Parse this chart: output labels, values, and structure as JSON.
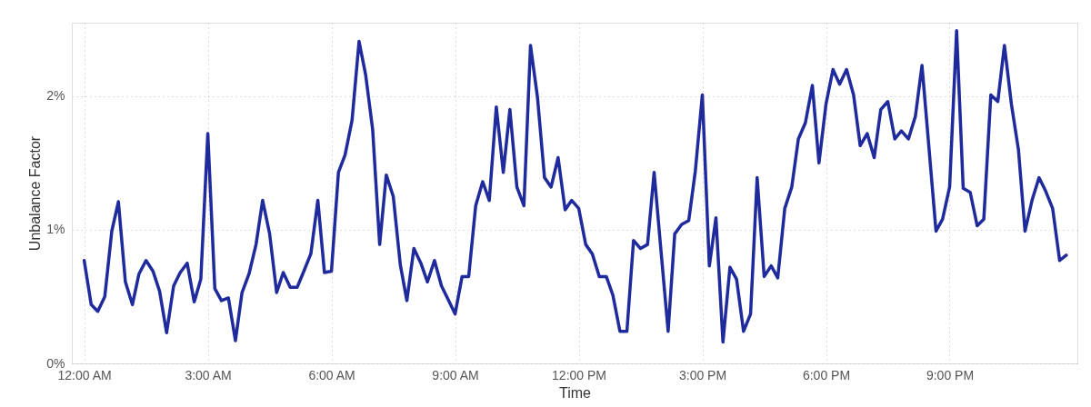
{
  "chart_data": {
    "type": "line",
    "xlabel": "Time",
    "ylabel": "Unbalance Factor",
    "x": [
      0,
      0.17,
      0.33,
      0.5,
      0.67,
      0.83,
      1,
      1.17,
      1.33,
      1.5,
      1.67,
      1.83,
      2,
      2.17,
      2.33,
      2.5,
      2.67,
      2.83,
      3,
      3.17,
      3.33,
      3.5,
      3.67,
      3.83,
      4,
      4.17,
      4.33,
      4.5,
      4.67,
      4.83,
      5,
      5.17,
      5.33,
      5.5,
      5.67,
      5.83,
      6,
      6.17,
      6.33,
      6.5,
      6.67,
      6.83,
      7,
      7.17,
      7.33,
      7.5,
      7.67,
      7.83,
      8,
      8.17,
      8.33,
      8.5,
      8.67,
      8.83,
      9,
      9.17,
      9.33,
      9.5,
      9.67,
      9.83,
      10,
      10.17,
      10.33,
      10.5,
      10.67,
      10.83,
      11,
      11.17,
      11.33,
      11.5,
      11.67,
      11.83,
      12,
      12.17,
      12.33,
      12.5,
      12.67,
      12.83,
      13,
      13.17,
      13.33,
      13.5,
      13.67,
      13.83,
      14,
      14.17,
      14.33,
      14.5,
      14.67,
      14.83,
      15,
      15.17,
      15.33,
      15.5,
      15.67,
      15.83,
      16,
      16.17,
      16.33,
      16.5,
      16.67,
      16.83,
      17,
      17.17,
      17.33,
      17.5,
      17.67,
      17.83,
      18,
      18.17,
      18.33,
      18.5,
      18.67,
      18.83,
      19,
      19.17,
      19.33,
      19.5,
      19.67,
      19.83,
      20,
      20.17,
      20.33,
      20.5,
      20.67,
      20.83,
      21,
      21.17,
      21.33,
      21.5,
      21.67,
      21.83,
      22,
      22.17,
      22.33,
      22.5,
      22.67,
      22.83,
      23,
      23.17,
      23.33,
      23.5,
      23.67,
      23.83
    ],
    "series": [
      {
        "color": "#1f2a9c",
        "values": [
          0.77,
          0.44,
          0.39,
          0.5,
          0.99,
          1.21,
          0.61,
          0.44,
          0.67,
          0.77,
          0.69,
          0.54,
          0.23,
          0.58,
          0.68,
          0.75,
          0.46,
          0.63,
          1.72,
          0.56,
          0.47,
          0.49,
          0.17,
          0.53,
          0.67,
          0.89,
          1.22,
          0.97,
          0.53,
          0.68,
          0.57,
          0.57,
          0.69,
          0.82,
          1.22,
          0.68,
          0.69,
          1.43,
          1.56,
          1.82,
          2.41,
          2.16,
          1.75,
          0.89,
          1.41,
          1.25,
          0.74,
          0.47,
          0.86,
          0.75,
          0.61,
          0.77,
          0.58,
          0.48,
          0.37,
          0.65,
          0.65,
          1.18,
          1.36,
          1.22,
          1.92,
          1.43,
          1.9,
          1.32,
          1.18,
          2.38,
          1.99,
          1.39,
          1.32,
          1.54,
          1.15,
          1.22,
          1.16,
          0.89,
          0.82,
          0.65,
          0.65,
          0.51,
          0.24,
          0.24,
          0.92,
          0.86,
          0.89,
          1.43,
          0.83,
          0.24,
          0.97,
          1.04,
          1.07,
          1.44,
          2.01,
          0.73,
          1.09,
          0.16,
          0.72,
          0.63,
          0.24,
          0.37,
          1.39,
          0.65,
          0.73,
          0.64,
          1.16,
          1.32,
          1.68,
          1.8,
          2.08,
          1.5,
          1.94,
          2.2,
          2.09,
          2.2,
          2.01,
          1.63,
          1.72,
          1.54,
          1.9,
          1.96,
          1.68,
          1.74,
          1.68,
          1.85,
          2.23,
          1.61,
          0.99,
          1.08,
          1.32,
          2.49,
          1.31,
          1.28,
          1.03,
          1.08,
          2.01,
          1.96,
          2.38,
          1.94,
          1.6,
          0.99,
          1.22,
          1.39,
          1.29,
          1.16,
          0.77,
          0.81
        ]
      }
    ],
    "xlim": [
      -0.3,
      24.1
    ],
    "xticks": [
      {
        "value": 0,
        "label": "12:00 AM"
      },
      {
        "value": 3,
        "label": "3:00 AM"
      },
      {
        "value": 6,
        "label": "6:00 AM"
      },
      {
        "value": 9,
        "label": "9:00 AM"
      },
      {
        "value": 12,
        "label": "12:00 PM"
      },
      {
        "value": 15,
        "label": "3:00 PM"
      },
      {
        "value": 18,
        "label": "6:00 PM"
      },
      {
        "value": 21,
        "label": "9:00 PM"
      }
    ],
    "ylim": [
      0,
      2.55
    ],
    "yticks": [
      {
        "value": 0,
        "label": "0%"
      },
      {
        "value": 1,
        "label": "1%"
      },
      {
        "value": 2,
        "label": "2%"
      }
    ],
    "grid": true,
    "marker": "none",
    "line_style": "solid"
  }
}
